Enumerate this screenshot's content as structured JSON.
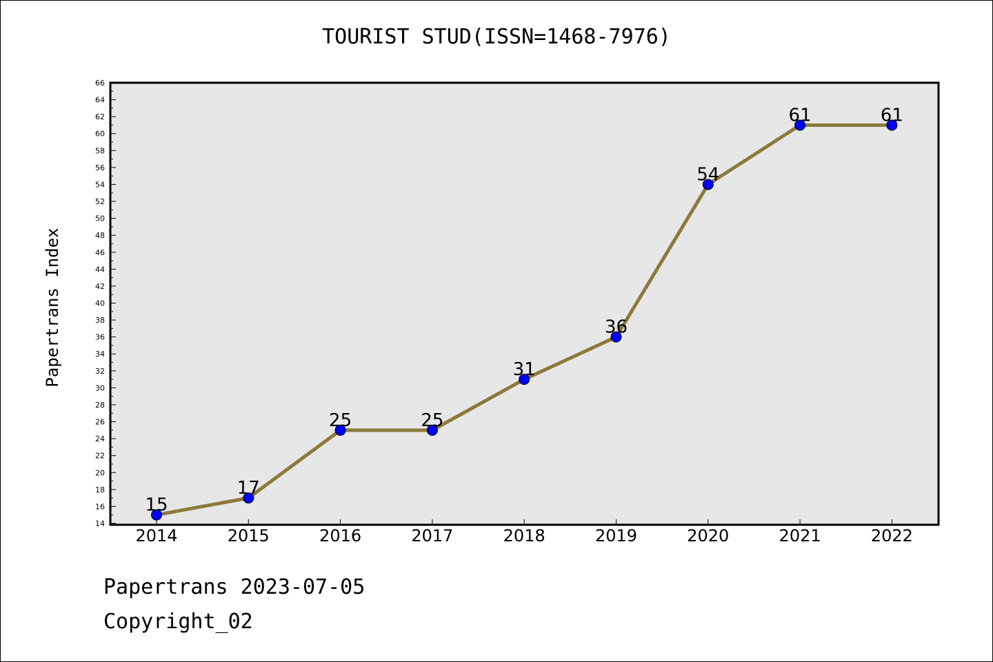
{
  "chart_data": {
    "type": "line",
    "title": "TOURIST STUD(ISSN=1468-7976)",
    "xlabel": "",
    "ylabel": "Papertrans Index",
    "categories": [
      "2014",
      "2015",
      "2016",
      "2017",
      "2018",
      "2019",
      "2020",
      "2021",
      "2022"
    ],
    "values": [
      15,
      17,
      25,
      25,
      31,
      36,
      54,
      61,
      61
    ],
    "ylim": [
      14,
      66
    ],
    "y_ticks": [
      "14",
      "16",
      "18",
      "20",
      "22",
      "24",
      "26",
      "28",
      "30",
      "32",
      "34",
      "36",
      "38",
      "40",
      "42",
      "44",
      "46",
      "48",
      "50",
      "52",
      "54",
      "56",
      "58",
      "60",
      "62",
      "64",
      "66"
    ],
    "data_labels": [
      "15",
      "17",
      "25",
      "25",
      "31",
      "36",
      "54",
      "61",
      "61"
    ],
    "grid": false,
    "colors": {
      "line": "#8b7a3a",
      "marker": "#0000ff",
      "plot_background": "#e7e7e7"
    }
  },
  "footer": {
    "date_text": "Papertrans 2023-07-05",
    "copyright": "Copyright_02"
  }
}
